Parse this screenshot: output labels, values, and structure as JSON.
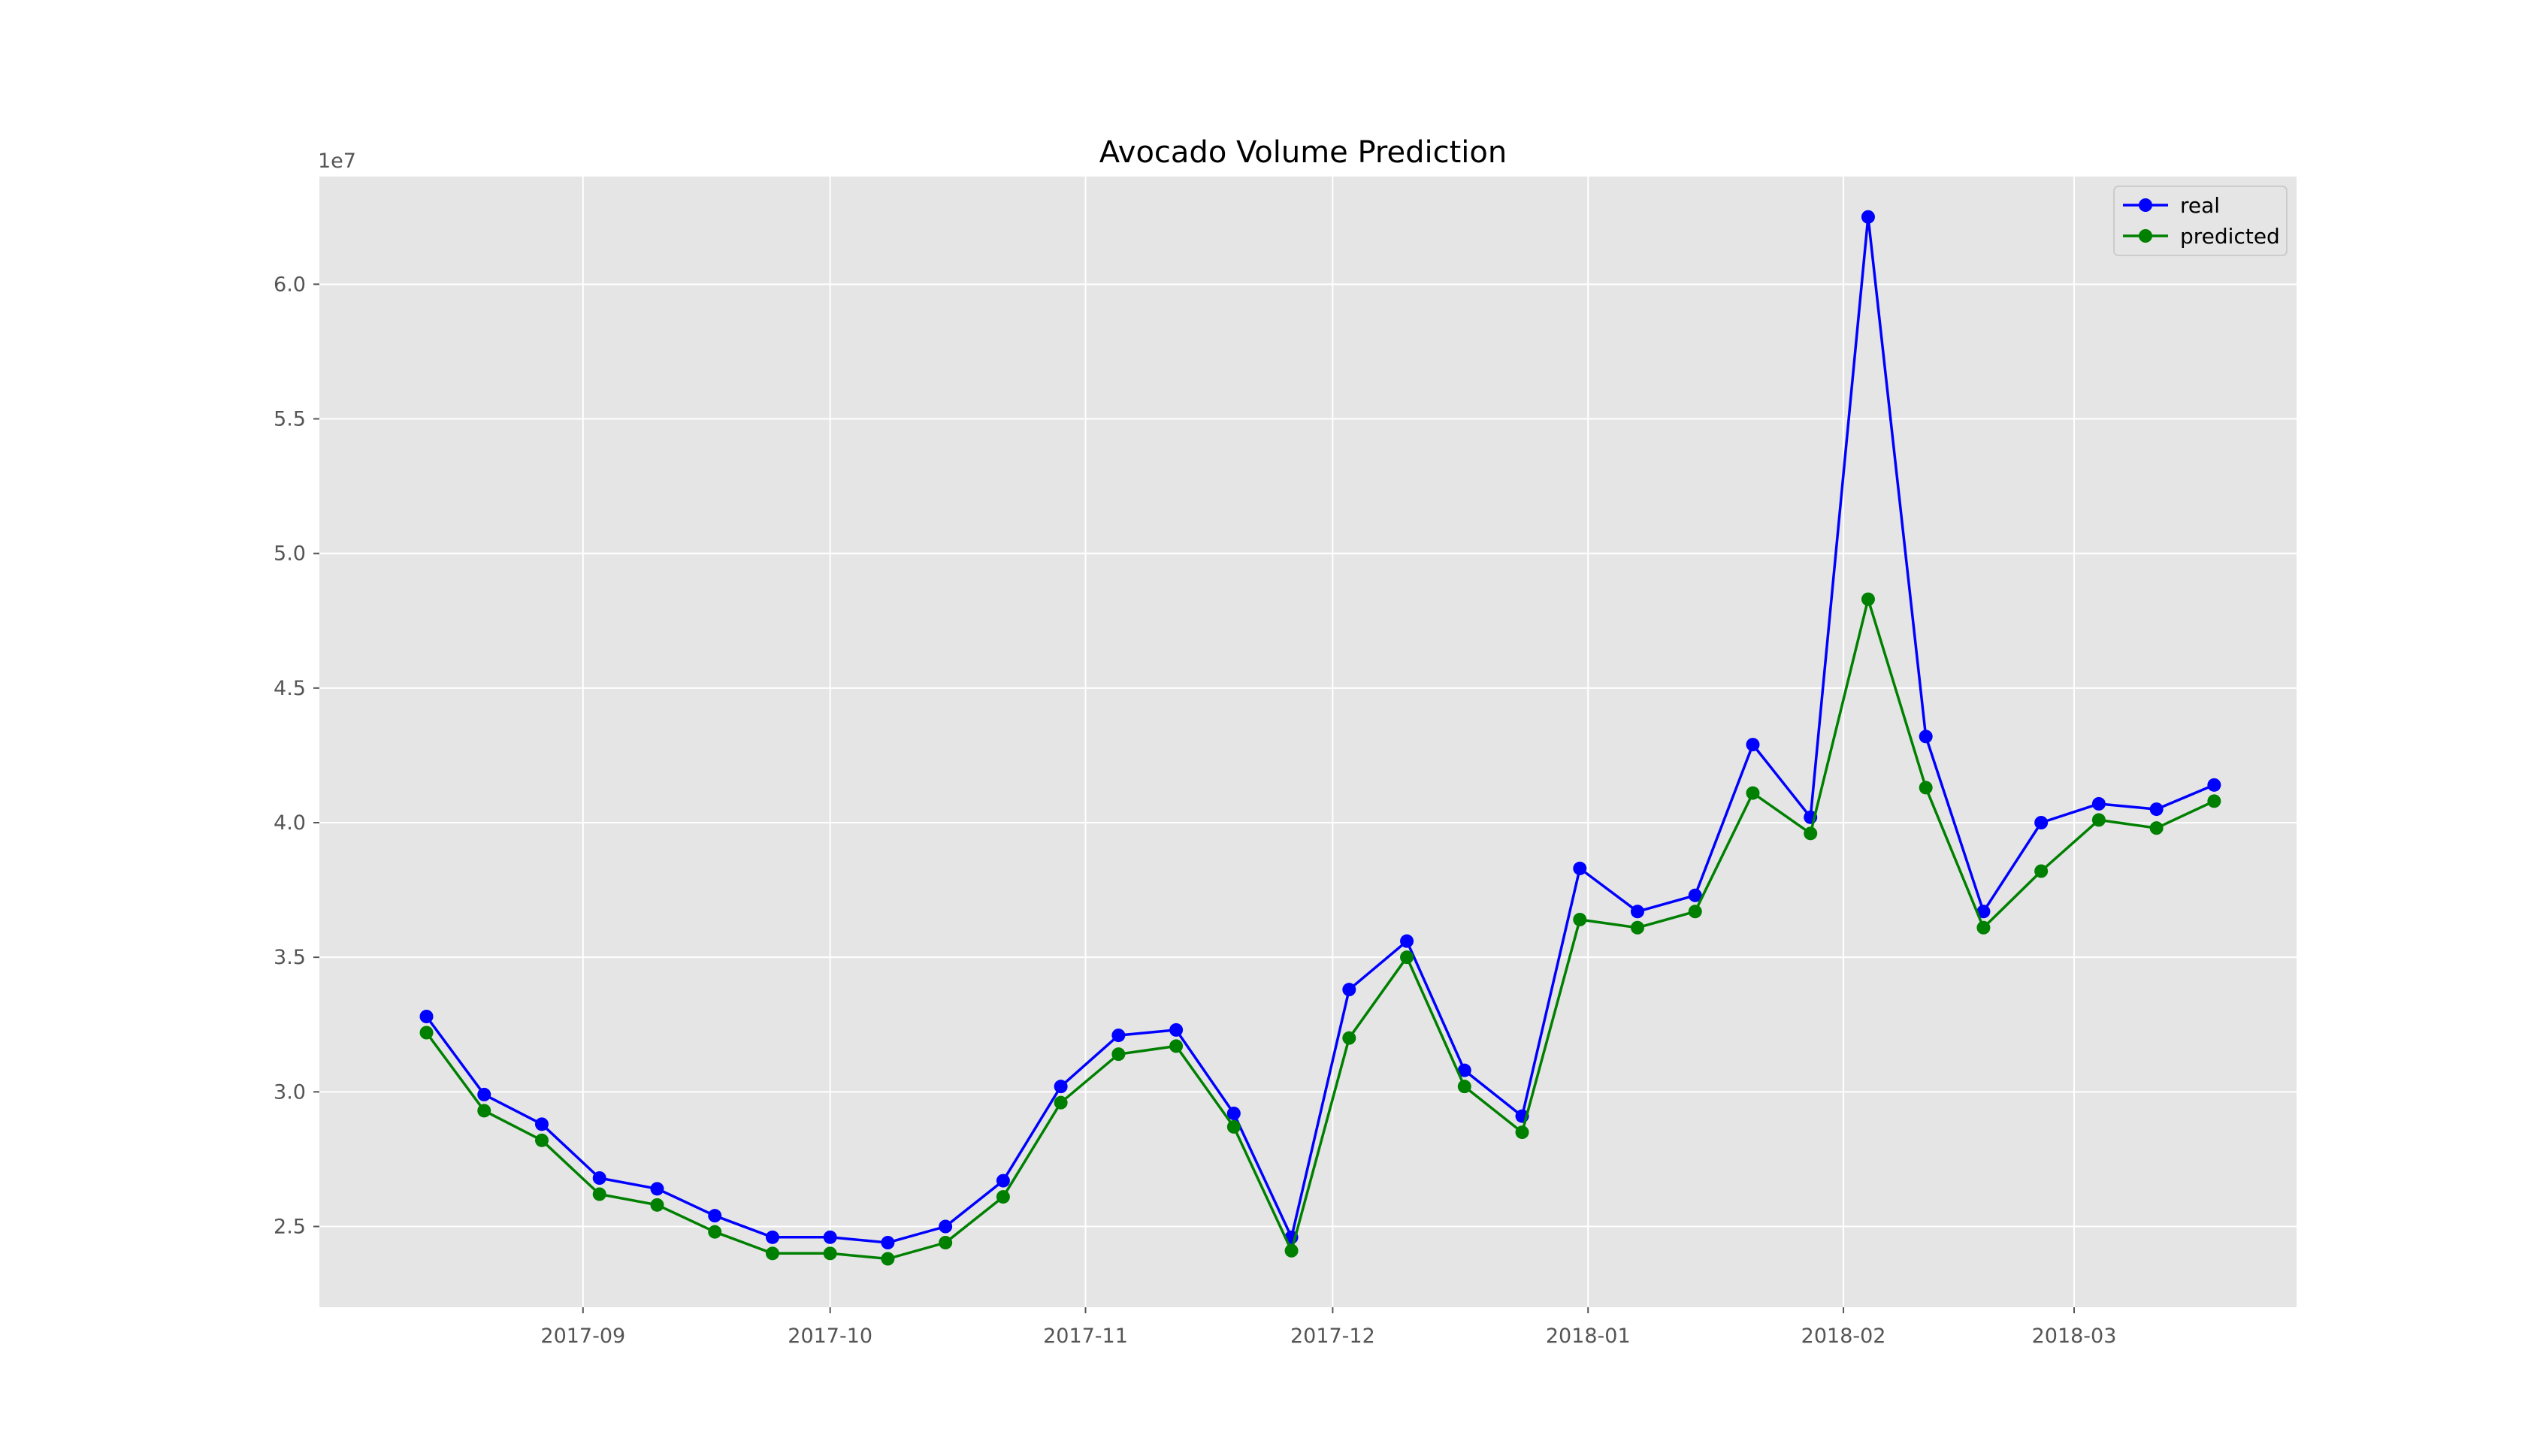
{
  "chart_data": {
    "type": "line",
    "title": "Avocado Volume Prediction",
    "xlabel": "",
    "ylabel": "",
    "y_offset_text": "1e7",
    "y_scale": 10000000,
    "ylim": [
      22000000,
      64000000
    ],
    "xlim": [
      "2017-07-31",
      "2018-03-28"
    ],
    "grid": true,
    "legend_position": "top-right",
    "x_ticks": [
      {
        "date": "2017-09-01",
        "label": "2017-09"
      },
      {
        "date": "2017-10-01",
        "label": "2017-10"
      },
      {
        "date": "2017-11-01",
        "label": "2017-11"
      },
      {
        "date": "2017-12-01",
        "label": "2017-12"
      },
      {
        "date": "2018-01-01",
        "label": "2018-01"
      },
      {
        "date": "2018-02-01",
        "label": "2018-02"
      },
      {
        "date": "2018-03-01",
        "label": "2018-03"
      }
    ],
    "y_ticks": [
      {
        "value": 25000000,
        "label": "2.5"
      },
      {
        "value": 30000000,
        "label": "3.0"
      },
      {
        "value": 35000000,
        "label": "3.5"
      },
      {
        "value": 40000000,
        "label": "4.0"
      },
      {
        "value": 45000000,
        "label": "4.5"
      },
      {
        "value": 50000000,
        "label": "5.0"
      },
      {
        "value": 55000000,
        "label": "5.5"
      },
      {
        "value": 60000000,
        "label": "6.0"
      }
    ],
    "x": [
      "2017-08-13",
      "2017-08-20",
      "2017-08-27",
      "2017-09-03",
      "2017-09-10",
      "2017-09-17",
      "2017-09-24",
      "2017-10-01",
      "2017-10-08",
      "2017-10-15",
      "2017-10-22",
      "2017-10-29",
      "2017-11-05",
      "2017-11-12",
      "2017-11-19",
      "2017-11-26",
      "2017-12-03",
      "2017-12-10",
      "2017-12-17",
      "2017-12-24",
      "2017-12-31",
      "2018-01-07",
      "2018-01-14",
      "2018-01-21",
      "2018-01-28",
      "2018-02-04",
      "2018-02-11",
      "2018-02-18",
      "2018-02-25",
      "2018-03-04",
      "2018-03-11",
      "2018-03-18"
    ],
    "series": [
      {
        "name": "real",
        "color": "#0000ff",
        "values": [
          32800000,
          29900000,
          28800000,
          26800000,
          26400000,
          25400000,
          24600000,
          24600000,
          24400000,
          25000000,
          26700000,
          30200000,
          32100000,
          32300000,
          29200000,
          24600000,
          33800000,
          35600000,
          30800000,
          29100000,
          38300000,
          36700000,
          37300000,
          42900000,
          40200000,
          62500000,
          43200000,
          36700000,
          40000000,
          40700000,
          40500000,
          41400000
        ]
      },
      {
        "name": "predicted",
        "color": "#008000",
        "values": [
          32200000,
          29300000,
          28200000,
          26200000,
          25800000,
          24800000,
          24000000,
          24000000,
          23800000,
          24400000,
          26100000,
          29600000,
          31400000,
          31700000,
          28700000,
          24100000,
          32000000,
          35000000,
          30200000,
          28500000,
          36400000,
          36100000,
          36700000,
          41100000,
          39600000,
          48300000,
          41300000,
          36100000,
          38200000,
          40100000,
          39800000,
          40800000
        ]
      }
    ]
  }
}
